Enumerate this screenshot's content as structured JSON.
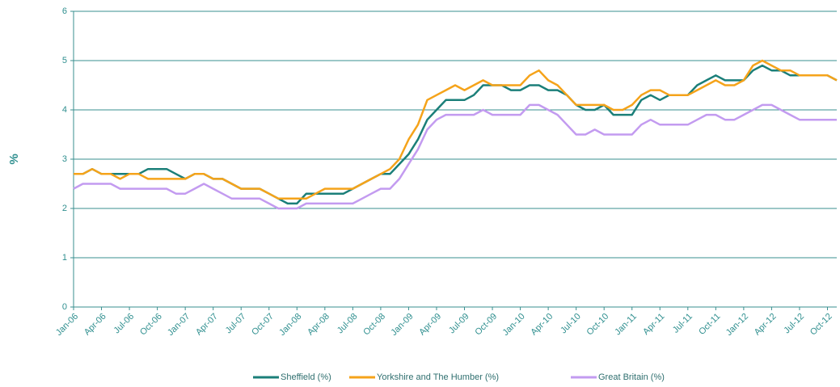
{
  "chart_data": {
    "type": "line",
    "y_label": "%",
    "categories": [
      "Jan-06",
      null,
      null,
      "Apr-06",
      null,
      null,
      "Jul-06",
      null,
      null,
      "Oct-06",
      null,
      null,
      "Jan-07",
      null,
      null,
      "Apr-07",
      null,
      null,
      "Jul-07",
      null,
      null,
      "Oct-07",
      null,
      null,
      "Jan-08",
      null,
      null,
      "Apr-08",
      null,
      null,
      "Jul-08",
      null,
      null,
      "Oct-08",
      null,
      null,
      "Jan-09",
      null,
      null,
      "Apr-09",
      null,
      null,
      "Jul-09",
      null,
      null,
      "Oct-09",
      null,
      null,
      "Jan-10",
      null,
      null,
      "Apr-10",
      null,
      null,
      "Jul-10",
      null,
      null,
      "Oct-10",
      null,
      null,
      "Jan-11",
      null,
      null,
      "Apr-11",
      null,
      null,
      "Jul-11",
      null,
      null,
      "Oct-11",
      null,
      null,
      "Jan-12",
      null,
      null,
      "Apr-12",
      null,
      null,
      "Jul-12",
      null,
      null,
      "Oct-12",
      null
    ],
    "series": [
      {
        "name": "Sheffield (%)",
        "color": "#1b7f79",
        "values": [
          2.7,
          2.7,
          2.8,
          2.7,
          2.7,
          2.7,
          2.7,
          2.7,
          2.8,
          2.8,
          2.8,
          2.7,
          2.6,
          2.7,
          2.7,
          2.6,
          2.6,
          2.5,
          2.4,
          2.4,
          2.4,
          2.3,
          2.2,
          2.1,
          2.1,
          2.3,
          2.3,
          2.3,
          2.3,
          2.3,
          2.4,
          2.5,
          2.6,
          2.7,
          2.7,
          2.9,
          3.1,
          3.4,
          3.8,
          4.0,
          4.2,
          4.2,
          4.2,
          4.3,
          4.5,
          4.5,
          4.5,
          4.4,
          4.4,
          4.5,
          4.5,
          4.4,
          4.4,
          4.3,
          4.1,
          4.0,
          4.0,
          4.1,
          3.9,
          3.9,
          3.9,
          4.2,
          4.3,
          4.2,
          4.3,
          4.3,
          4.3,
          4.5,
          4.6,
          4.7,
          4.6,
          4.6,
          4.6,
          4.8,
          4.9,
          4.8,
          4.8,
          4.7,
          4.7,
          4.7,
          4.7,
          4.7,
          4.6
        ]
      },
      {
        "name": "Yorkshire and The Humber (%)",
        "color": "#f5a31a",
        "values": [
          2.7,
          2.7,
          2.8,
          2.7,
          2.7,
          2.6,
          2.7,
          2.7,
          2.6,
          2.6,
          2.6,
          2.6,
          2.6,
          2.7,
          2.7,
          2.6,
          2.6,
          2.5,
          2.4,
          2.4,
          2.4,
          2.3,
          2.2,
          2.2,
          2.2,
          2.2,
          2.3,
          2.4,
          2.4,
          2.4,
          2.4,
          2.5,
          2.6,
          2.7,
          2.8,
          3.0,
          3.4,
          3.7,
          4.2,
          4.3,
          4.4,
          4.5,
          4.4,
          4.5,
          4.6,
          4.5,
          4.5,
          4.5,
          4.5,
          4.7,
          4.8,
          4.6,
          4.5,
          4.3,
          4.1,
          4.1,
          4.1,
          4.1,
          4.0,
          4.0,
          4.1,
          4.3,
          4.4,
          4.4,
          4.3,
          4.3,
          4.3,
          4.4,
          4.5,
          4.6,
          4.5,
          4.5,
          4.6,
          4.9,
          5.0,
          4.9,
          4.8,
          4.8,
          4.7,
          4.7,
          4.7,
          4.7,
          4.6
        ]
      },
      {
        "name": "Great Britain (%)",
        "color": "#c39bf0",
        "values": [
          2.4,
          2.5,
          2.5,
          2.5,
          2.5,
          2.4,
          2.4,
          2.4,
          2.4,
          2.4,
          2.4,
          2.3,
          2.3,
          2.4,
          2.5,
          2.4,
          2.3,
          2.2,
          2.2,
          2.2,
          2.2,
          2.1,
          2.0,
          2.0,
          2.0,
          2.1,
          2.1,
          2.1,
          2.1,
          2.1,
          2.1,
          2.2,
          2.3,
          2.4,
          2.4,
          2.6,
          2.9,
          3.2,
          3.6,
          3.8,
          3.9,
          3.9,
          3.9,
          3.9,
          4.0,
          3.9,
          3.9,
          3.9,
          3.9,
          4.1,
          4.1,
          4.0,
          3.9,
          3.7,
          3.5,
          3.5,
          3.6,
          3.5,
          3.5,
          3.5,
          3.5,
          3.7,
          3.8,
          3.7,
          3.7,
          3.7,
          3.7,
          3.8,
          3.9,
          3.9,
          3.8,
          3.8,
          3.9,
          4.0,
          4.1,
          4.1,
          4.0,
          3.9,
          3.8,
          3.8,
          3.8,
          3.8,
          3.8
        ]
      }
    ],
    "ylim": [
      0,
      6
    ],
    "yticks": [
      0,
      1,
      2,
      3,
      4,
      5,
      6
    ],
    "grid": true,
    "legend": "bottom"
  }
}
